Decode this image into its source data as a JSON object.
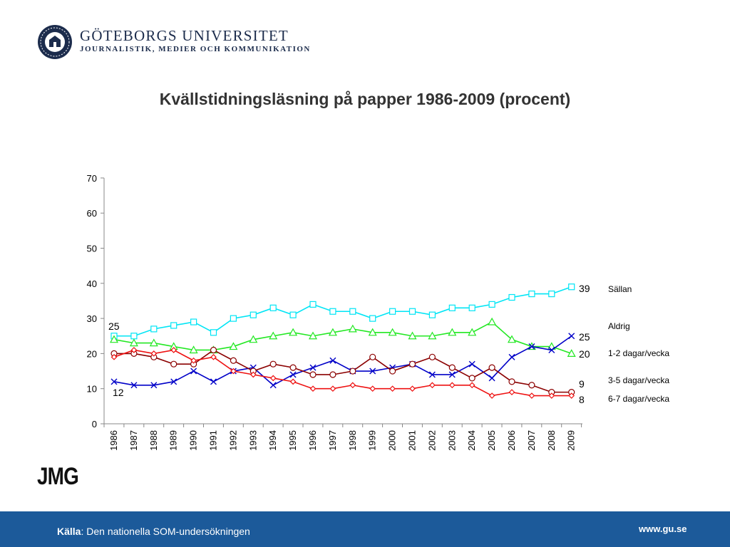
{
  "header": {
    "university": "GÖTEBORGS UNIVERSITET",
    "department": "JOURNALISTIK, MEDIER OCH KOMMUNIKATION"
  },
  "footer": {
    "source_label": "Källa",
    "source_text": ": Den nationella SOM-undersökningen",
    "url": "www.gu.se",
    "logo_text": "JMG"
  },
  "chart_data": {
    "type": "line",
    "title": "Kvällstidningsläsning på papper 1986-2009 (procent)",
    "xlabel": "",
    "ylabel": "",
    "ylim": [
      0,
      70
    ],
    "yticks": [
      0,
      10,
      20,
      30,
      40,
      50,
      60,
      70
    ],
    "grid": false,
    "legend": "right, labels next to line ends",
    "x": [
      "1986",
      "1987",
      "1988",
      "1989",
      "1990",
      "1991",
      "1992",
      "1993",
      "1994",
      "1995",
      "1996",
      "1997",
      "1998",
      "1999",
      "2000",
      "2001",
      "2002",
      "2003",
      "2004",
      "2005",
      "2006",
      "2007",
      "2008",
      "2009"
    ],
    "series": [
      {
        "name": "Sällan",
        "color": "#00e5f5",
        "marker": "square",
        "start_label": "25",
        "end_label": "39",
        "values": [
          25,
          25,
          27,
          28,
          29,
          26,
          30,
          31,
          33,
          31,
          34,
          32,
          32,
          30,
          32,
          32,
          31,
          33,
          33,
          34,
          36,
          37,
          37,
          39
        ]
      },
      {
        "name": "Aldrig",
        "color": "#22e822",
        "marker": "triangle",
        "start_label": "",
        "end_label": "",
        "values": [
          24,
          23,
          23,
          22,
          21,
          21,
          22,
          24,
          25,
          26,
          25,
          26,
          27,
          26,
          26,
          25,
          25,
          26,
          26,
          29,
          24,
          22,
          22,
          20
        ]
      },
      {
        "name": "1-2 dagar/vecka",
        "color": "#0000c8",
        "marker": "x",
        "start_label": "12",
        "end_label": "25",
        "values": [
          12,
          11,
          11,
          12,
          15,
          12,
          15,
          16,
          11,
          14,
          16,
          18,
          15,
          15,
          16,
          17,
          14,
          14,
          17,
          13,
          19,
          22,
          21,
          25
        ]
      },
      {
        "name": "3-5 dagar/vecka",
        "color": "#8b0000",
        "marker": "circle",
        "start_label": "",
        "end_label": "9",
        "values": [
          20,
          20,
          19,
          17,
          17,
          21,
          18,
          15,
          17,
          16,
          14,
          14,
          15,
          19,
          15,
          17,
          19,
          16,
          13,
          16,
          12,
          11,
          9,
          9
        ]
      },
      {
        "name": "6-7 dagar/vecka",
        "color": "#ee1111",
        "marker": "diamond",
        "start_label": "",
        "end_label": "8",
        "values": [
          19,
          21,
          20,
          21,
          18,
          19,
          15,
          14,
          13,
          12,
          10,
          10,
          11,
          10,
          10,
          10,
          11,
          11,
          11,
          8,
          9,
          8,
          8,
          8
        ]
      }
    ],
    "end_label_20": "20"
  }
}
